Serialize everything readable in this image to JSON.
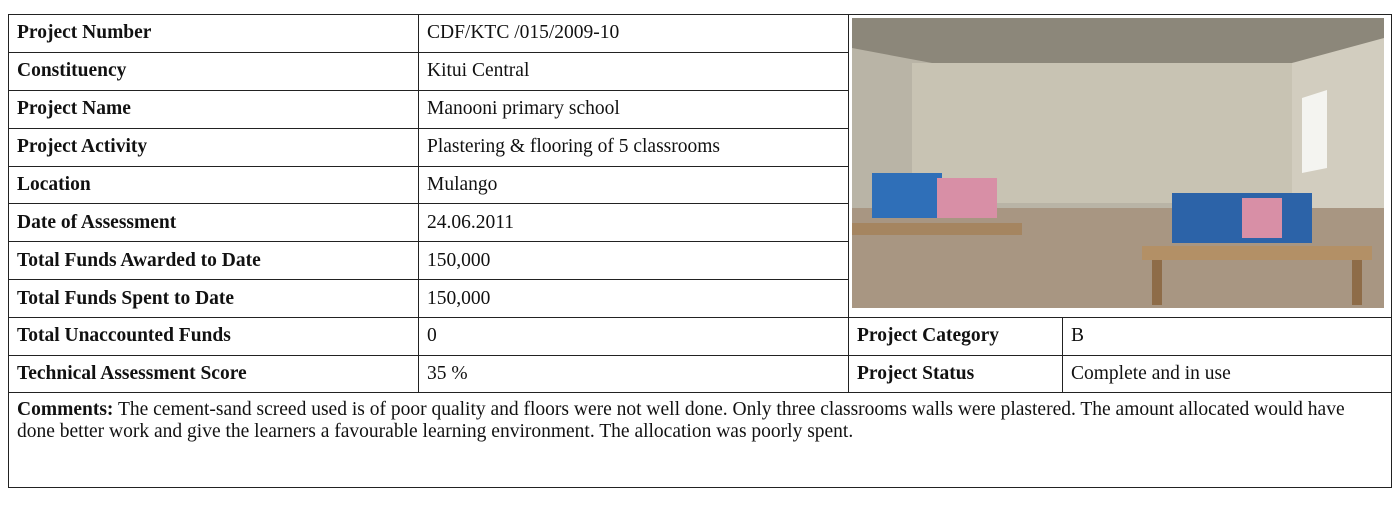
{
  "rows": [
    {
      "label": "Project Number",
      "value": "CDF/KTC /015/2009-10"
    },
    {
      "label": "Constituency",
      "value": "Kitui Central"
    },
    {
      "label": "Project Name",
      "value": "Manooni primary school"
    },
    {
      "label": "Project Activity",
      "value": "Plastering & flooring of 5 classrooms"
    },
    {
      "label": "Location",
      "value": "Mulango"
    },
    {
      "label": "Date of Assessment",
      "value": "24.06.2011"
    },
    {
      "label": "Total Funds Awarded to Date",
      "value": "150,000"
    },
    {
      "label": "Total Funds Spent to Date",
      "value": "150,000"
    },
    {
      "label": "Total Unaccounted Funds",
      "value": "0"
    },
    {
      "label": "Technical Assessment Score",
      "value": "35 %"
    }
  ],
  "side": [
    {
      "label": "Project Category",
      "value": "B"
    },
    {
      "label": "Project Status",
      "value": "Complete and in use"
    }
  ],
  "comments": {
    "label": "Comments:",
    "text": "The cement-sand screed used is of poor quality and floors were not well done. Only three classrooms walls were plastered. The amount allocated would have done better work and give the learners a favourable learning environment. The allocation was poorly spent."
  }
}
